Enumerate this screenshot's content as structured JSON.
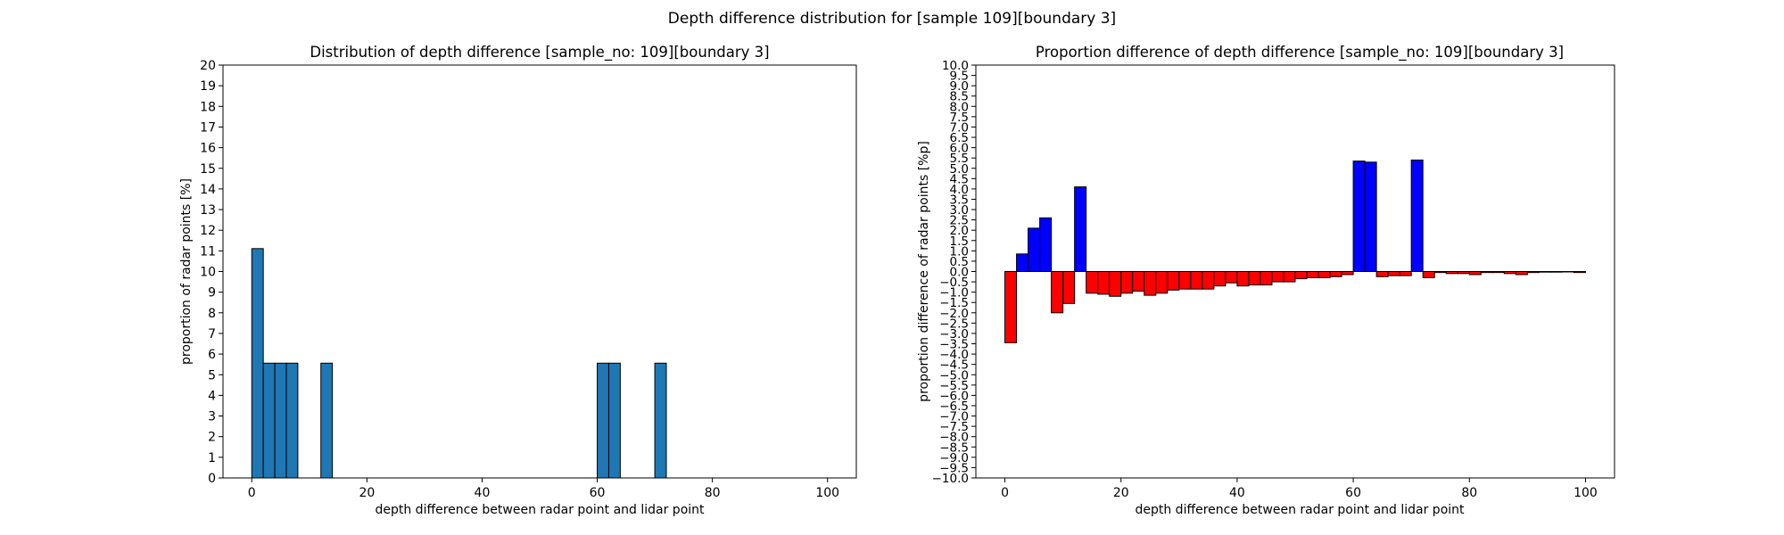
{
  "figure": {
    "suptitle": "Depth difference distribution for [sample 109][boundary 3]"
  },
  "chart_data": [
    {
      "type": "bar",
      "title": "Distribution of depth difference [sample_no: 109][boundary 3]",
      "xlabel": "depth difference between radar point and lidar point",
      "ylabel": "proportion of radar points [%]",
      "xlim": [
        -5,
        105
      ],
      "ylim": [
        0,
        20
      ],
      "xticks": [
        0,
        20,
        40,
        60,
        80,
        100
      ],
      "yticks": [
        0,
        1,
        2,
        3,
        4,
        5,
        6,
        7,
        8,
        9,
        10,
        11,
        12,
        13,
        14,
        15,
        16,
        17,
        18,
        19,
        20
      ],
      "bin_width": 2,
      "bar_color": "#1f77b4",
      "edge_color": "#000000",
      "bins_left_edge": [
        0,
        2,
        4,
        6,
        12,
        60,
        62,
        70
      ],
      "values": [
        11.11,
        5.56,
        5.56,
        5.56,
        5.56,
        5.56,
        5.56,
        5.56
      ]
    },
    {
      "type": "bar",
      "title": "Proportion difference of depth difference [sample_no: 109][boundary 3]",
      "xlabel": "depth difference between radar point and lidar point",
      "ylabel": "proportion difference of radar points [%p]",
      "xlim": [
        -5,
        105
      ],
      "ylim": [
        -10,
        10
      ],
      "xticks": [
        0,
        20,
        40,
        60,
        80,
        100
      ],
      "yticks": [
        -10.0,
        -9.5,
        -9.0,
        -8.5,
        -8.0,
        -7.5,
        -7.0,
        -6.5,
        -6.0,
        -5.5,
        -5.0,
        -4.5,
        -4.0,
        -3.5,
        -3.0,
        -2.5,
        -2.0,
        -1.5,
        -1.0,
        -0.5,
        0.0,
        0.5,
        1.0,
        1.5,
        2.0,
        2.5,
        3.0,
        3.5,
        4.0,
        4.5,
        5.0,
        5.5,
        6.0,
        6.5,
        7.0,
        7.5,
        8.0,
        8.5,
        9.0,
        9.5,
        10.0
      ],
      "bin_width": 2,
      "positive_color": "#0000ff",
      "negative_color": "#ff0000",
      "edge_color": "#000000",
      "bins_left_edge": [
        0,
        2,
        4,
        6,
        8,
        10,
        12,
        14,
        16,
        18,
        20,
        22,
        24,
        26,
        28,
        30,
        32,
        34,
        36,
        38,
        40,
        42,
        44,
        46,
        48,
        50,
        52,
        54,
        56,
        58,
        60,
        62,
        64,
        66,
        68,
        70,
        72,
        74,
        76,
        78,
        80,
        82,
        84,
        86,
        88,
        90,
        92,
        94,
        96,
        98
      ],
      "values": [
        -3.45,
        0.85,
        2.1,
        2.6,
        -2.0,
        -1.55,
        4.1,
        -1.05,
        -1.1,
        -1.2,
        -1.05,
        -0.95,
        -1.15,
        -1.05,
        -0.9,
        -0.85,
        -0.85,
        -0.85,
        -0.7,
        -0.55,
        -0.7,
        -0.65,
        -0.65,
        -0.5,
        -0.5,
        -0.35,
        -0.3,
        -0.3,
        -0.25,
        -0.15,
        5.35,
        5.3,
        -0.25,
        -0.2,
        -0.2,
        5.4,
        -0.3,
        -0.05,
        -0.1,
        -0.1,
        -0.15,
        -0.05,
        -0.05,
        -0.1,
        -0.15,
        -0.05,
        -0.03,
        -0.03,
        -0.02,
        -0.05
      ]
    }
  ]
}
